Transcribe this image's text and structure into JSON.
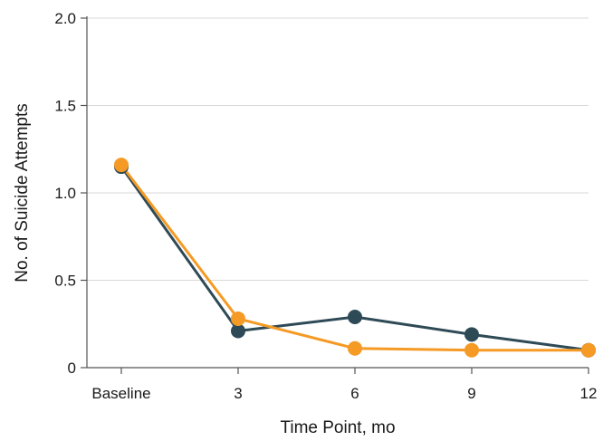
{
  "chart_data": {
    "type": "line",
    "categories": [
      "Baseline",
      "3",
      "6",
      "9",
      "12"
    ],
    "x": [
      0,
      3,
      6,
      9,
      12
    ],
    "series": [
      {
        "values": [
          1.15,
          0.21,
          0.29,
          0.19,
          0.1
        ],
        "color": "#2e4a56"
      },
      {
        "values": [
          1.16,
          0.28,
          0.11,
          0.1,
          0.1
        ],
        "color": "#f59a25"
      }
    ],
    "xlabel": "Time Point, mo",
    "ylabel": "No. of Suicide Attempts",
    "ylim": [
      0,
      2.0
    ],
    "yticks": [
      0,
      0.5,
      1.0,
      1.5,
      2.0
    ],
    "ytick_labels": [
      "0",
      "0.5",
      "1.0",
      "1.5",
      "2.0"
    ],
    "grid": true,
    "legend": "none"
  }
}
